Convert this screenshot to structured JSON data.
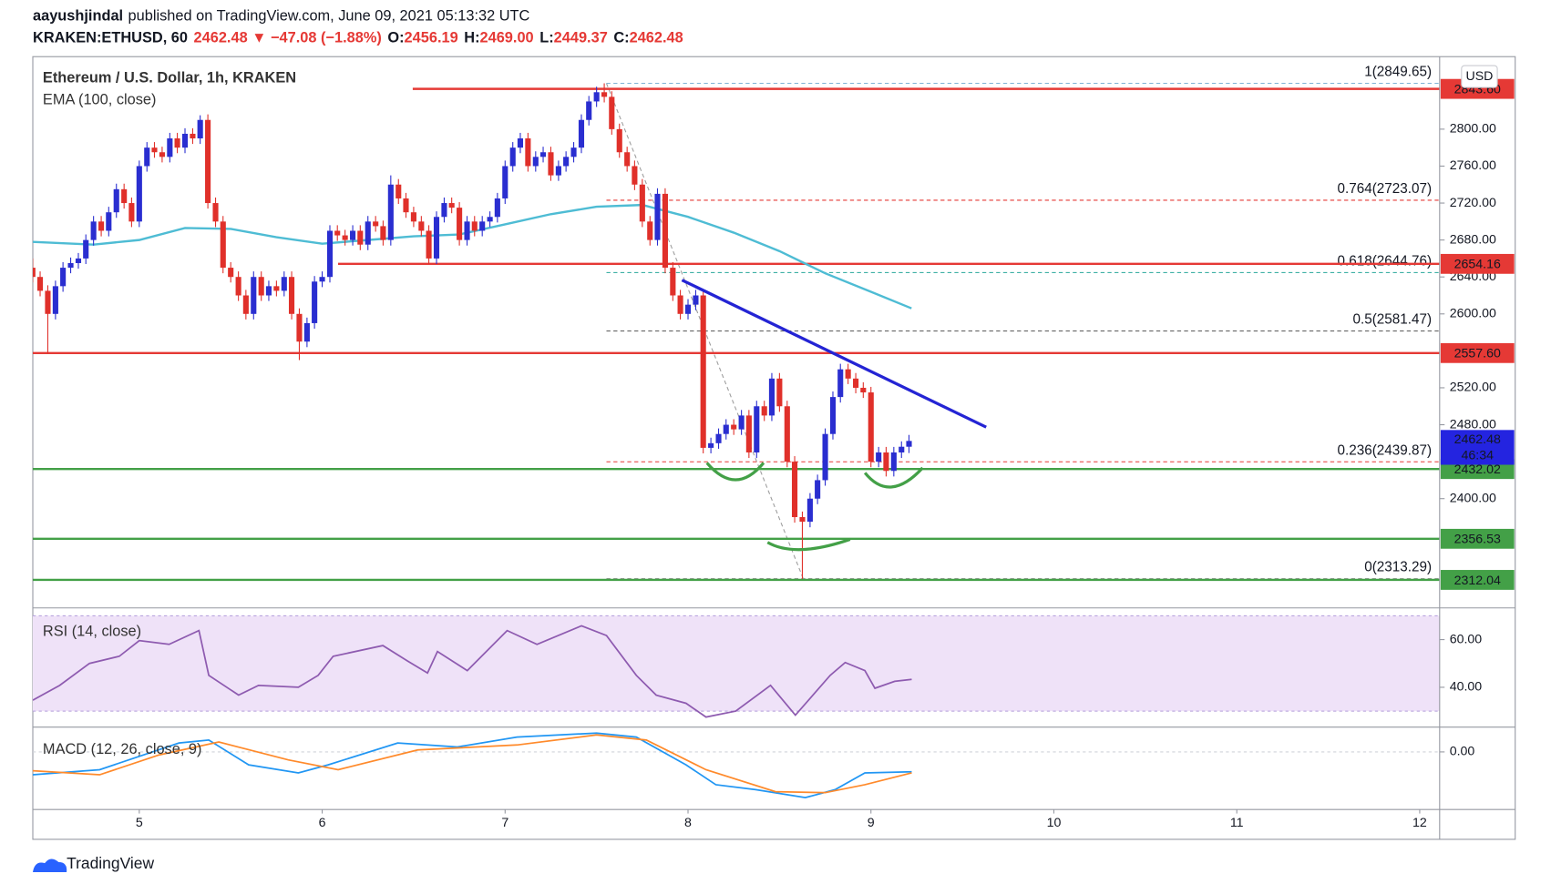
{
  "header": {
    "author": "aayushjindal",
    "published": "published on TradingView.com, June 09, 2021 05:13:32 UTC",
    "symbol": "KRAKEN:ETHUSD, 60",
    "change": "2462.48 ▼ −47.08 (−1.88%)",
    "ohlc_labels": [
      {
        "label": "O:",
        "value": "2456.19"
      },
      {
        "label": "H:",
        "value": "2469.00"
      },
      {
        "label": "L:",
        "value": "2449.37"
      },
      {
        "label": "C:",
        "value": "2462.48"
      }
    ]
  },
  "footer": {
    "brand": "TradingView"
  },
  "chart_data": [
    {
      "type": "candlestick",
      "title": "Ethereum / U.S. Dollar, 1h, KRAKEN",
      "currency": "USD",
      "up_color": "#2a2ed0",
      "down_color": "#e0302a",
      "xlim": [
        4.418,
        12.109
      ],
      "xticks": [
        5,
        6,
        7,
        8,
        9,
        10,
        11,
        12
      ],
      "ylim": [
        2281.7,
        2878.5
      ],
      "yticks": [
        {
          "value": 2800,
          "label": "2800.00"
        },
        {
          "value": 2760,
          "label": "2760.00"
        },
        {
          "value": 2720,
          "label": "2720.00"
        },
        {
          "value": 2680,
          "label": "2680.00"
        },
        {
          "value": 2640,
          "label": "2640.00"
        },
        {
          "value": 2600,
          "label": "2600.00"
        },
        {
          "value": 2520,
          "label": "2520.00"
        },
        {
          "value": 2480,
          "label": "2480.00"
        },
        {
          "value": 2400,
          "label": "2400.00"
        }
      ],
      "x": [
        4.417,
        4.458,
        4.5,
        4.542,
        4.583,
        4.625,
        4.667,
        4.708,
        4.75,
        4.792,
        4.833,
        4.875,
        4.917,
        4.958,
        5,
        5.042,
        5.083,
        5.125,
        5.167,
        5.208,
        5.25,
        5.292,
        5.333,
        5.375,
        5.417,
        5.458,
        5.5,
        5.542,
        5.583,
        5.625,
        5.667,
        5.708,
        5.75,
        5.792,
        5.833,
        5.875,
        5.917,
        5.958,
        6,
        6.042,
        6.083,
        6.125,
        6.167,
        6.208,
        6.25,
        6.292,
        6.333,
        6.375,
        6.417,
        6.458,
        6.5,
        6.542,
        6.583,
        6.625,
        6.667,
        6.708,
        6.75,
        6.792,
        6.833,
        6.875,
        6.917,
        6.958,
        7,
        7.042,
        7.083,
        7.125,
        7.167,
        7.208,
        7.25,
        7.292,
        7.333,
        7.375,
        7.417,
        7.458,
        7.5,
        7.542,
        7.583,
        7.625,
        7.667,
        7.708,
        7.75,
        7.792,
        7.833,
        7.875,
        7.917,
        7.958,
        8,
        8.042,
        8.083,
        8.125,
        8.167,
        8.208,
        8.25,
        8.292,
        8.333,
        8.375,
        8.417,
        8.458,
        8.5,
        8.542,
        8.583,
        8.625,
        8.667,
        8.708,
        8.75,
        8.792,
        8.833,
        8.875,
        8.917,
        8.958,
        9,
        9.042,
        9.083,
        9.125,
        9.167,
        9.208
      ],
      "ohlc": [
        [
          2650,
          2660,
          2634,
          2640
        ],
        [
          2640,
          2646,
          2619,
          2625
        ],
        [
          2625,
          2631,
          2557,
          2600
        ],
        [
          2600,
          2636,
          2594,
          2630
        ],
        [
          2630,
          2656,
          2624,
          2650
        ],
        [
          2650,
          2661,
          2644,
          2655
        ],
        [
          2655,
          2666,
          2649,
          2660
        ],
        [
          2660,
          2686,
          2654,
          2680
        ],
        [
          2680,
          2706,
          2674,
          2700
        ],
        [
          2700,
          2706,
          2684,
          2690
        ],
        [
          2690,
          2716,
          2684,
          2710
        ],
        [
          2710,
          2741,
          2704,
          2735
        ],
        [
          2735,
          2741,
          2714,
          2720
        ],
        [
          2720,
          2726,
          2694,
          2700
        ],
        [
          2700,
          2766,
          2694,
          2760
        ],
        [
          2760,
          2786,
          2754,
          2780
        ],
        [
          2780,
          2786,
          2769,
          2775
        ],
        [
          2775,
          2781,
          2764,
          2770
        ],
        [
          2770,
          2796,
          2764,
          2790
        ],
        [
          2790,
          2796,
          2774,
          2780
        ],
        [
          2780,
          2801,
          2774,
          2795
        ],
        [
          2795,
          2801,
          2784,
          2790
        ],
        [
          2790,
          2815,
          2784,
          2810
        ],
        [
          2810,
          2816,
          2714,
          2720
        ],
        [
          2720,
          2726,
          2694,
          2700
        ],
        [
          2700,
          2706,
          2644,
          2650
        ],
        [
          2650,
          2656,
          2634,
          2640
        ],
        [
          2640,
          2646,
          2614,
          2620
        ],
        [
          2620,
          2626,
          2594,
          2600
        ],
        [
          2600,
          2646,
          2594,
          2640
        ],
        [
          2640,
          2646,
          2614,
          2620
        ],
        [
          2620,
          2636,
          2614,
          2630
        ],
        [
          2630,
          2636,
          2619,
          2625
        ],
        [
          2625,
          2646,
          2619,
          2640
        ],
        [
          2640,
          2646,
          2594,
          2600
        ],
        [
          2600,
          2606,
          2550,
          2570
        ],
        [
          2570,
          2596,
          2564,
          2590
        ],
        [
          2590,
          2641,
          2584,
          2635
        ],
        [
          2635,
          2646,
          2629,
          2640
        ],
        [
          2640,
          2696,
          2634,
          2690
        ],
        [
          2690,
          2696,
          2679,
          2685
        ],
        [
          2685,
          2691,
          2674,
          2680
        ],
        [
          2680,
          2696,
          2674,
          2690
        ],
        [
          2690,
          2696,
          2669,
          2675
        ],
        [
          2675,
          2706,
          2669,
          2700
        ],
        [
          2700,
          2706,
          2689,
          2695
        ],
        [
          2695,
          2701,
          2674,
          2680
        ],
        [
          2680,
          2750,
          2674,
          2740
        ],
        [
          2740,
          2746,
          2719,
          2725
        ],
        [
          2725,
          2731,
          2704,
          2710
        ],
        [
          2710,
          2716,
          2694,
          2700
        ],
        [
          2700,
          2706,
          2684,
          2690
        ],
        [
          2690,
          2696,
          2654,
          2660
        ],
        [
          2660,
          2711,
          2654,
          2705
        ],
        [
          2705,
          2726,
          2699,
          2720
        ],
        [
          2720,
          2726,
          2709,
          2715
        ],
        [
          2715,
          2721,
          2674,
          2680
        ],
        [
          2680,
          2706,
          2674,
          2700
        ],
        [
          2700,
          2706,
          2684,
          2690
        ],
        [
          2690,
          2706,
          2684,
          2700
        ],
        [
          2700,
          2711,
          2694,
          2705
        ],
        [
          2705,
          2731,
          2699,
          2725
        ],
        [
          2725,
          2766,
          2719,
          2760
        ],
        [
          2760,
          2786,
          2754,
          2780
        ],
        [
          2780,
          2796,
          2774,
          2790
        ],
        [
          2790,
          2796,
          2754,
          2760
        ],
        [
          2760,
          2776,
          2754,
          2770
        ],
        [
          2770,
          2781,
          2764,
          2775
        ],
        [
          2775,
          2781,
          2744,
          2750
        ],
        [
          2750,
          2766,
          2744,
          2760
        ],
        [
          2760,
          2776,
          2754,
          2770
        ],
        [
          2770,
          2786,
          2764,
          2780
        ],
        [
          2780,
          2816,
          2774,
          2810
        ],
        [
          2810,
          2836,
          2804,
          2830
        ],
        [
          2830,
          2846,
          2824,
          2840
        ],
        [
          2840,
          2849.65,
          2829,
          2835
        ],
        [
          2835,
          2841,
          2794,
          2800
        ],
        [
          2800,
          2806,
          2769,
          2775
        ],
        [
          2775,
          2781,
          2754,
          2760
        ],
        [
          2760,
          2766,
          2734,
          2740
        ],
        [
          2740,
          2746,
          2694,
          2700
        ],
        [
          2700,
          2706,
          2674,
          2680
        ],
        [
          2680,
          2736,
          2674,
          2730
        ],
        [
          2730,
          2736,
          2644,
          2650
        ],
        [
          2650,
          2656,
          2614,
          2620
        ],
        [
          2620,
          2626,
          2594,
          2600
        ],
        [
          2600,
          2616,
          2594,
          2610
        ],
        [
          2610,
          2626,
          2604,
          2620
        ],
        [
          2620,
          2626,
          2449,
          2455
        ],
        [
          2455,
          2466,
          2449,
          2460
        ],
        [
          2460,
          2476,
          2454,
          2470
        ],
        [
          2470,
          2486,
          2464,
          2480
        ],
        [
          2480,
          2486,
          2469,
          2475
        ],
        [
          2475,
          2496,
          2469,
          2490
        ],
        [
          2490,
          2496,
          2444,
          2450
        ],
        [
          2450,
          2506,
          2444,
          2500
        ],
        [
          2500,
          2506,
          2484,
          2490
        ],
        [
          2490,
          2536,
          2484,
          2530
        ],
        [
          2530,
          2536,
          2494,
          2500
        ],
        [
          2500,
          2506,
          2434,
          2440
        ],
        [
          2440,
          2446,
          2374,
          2380
        ],
        [
          2380,
          2386,
          2313.29,
          2375
        ],
        [
          2375,
          2406,
          2369,
          2400
        ],
        [
          2400,
          2426,
          2394,
          2420
        ],
        [
          2420,
          2476,
          2414,
          2470
        ],
        [
          2470,
          2516,
          2464,
          2510
        ],
        [
          2510,
          2546,
          2504,
          2540
        ],
        [
          2540,
          2546,
          2524,
          2530
        ],
        [
          2530,
          2536,
          2514,
          2520
        ],
        [
          2520,
          2526,
          2509,
          2515
        ],
        [
          2515,
          2521,
          2434,
          2440
        ],
        [
          2440,
          2456,
          2434,
          2450
        ],
        [
          2450,
          2456,
          2424,
          2430
        ],
        [
          2430,
          2456,
          2424,
          2450
        ],
        [
          2450,
          2462,
          2444,
          2456.19
        ],
        [
          2456.19,
          2469,
          2449.37,
          2462.48
        ]
      ],
      "overlays": [
        {
          "name": "EMA (100, close)",
          "color": "#4ebcd4",
          "x": [
            4.418,
            4.75,
            5,
            5.25,
            5.5,
            5.75,
            6,
            6.25,
            6.5,
            6.75,
            7,
            7.25,
            7.5,
            7.75,
            8,
            8.25,
            8.5,
            8.75,
            9,
            9.222
          ],
          "values": [
            2678,
            2675,
            2680,
            2693,
            2692,
            2683,
            2676,
            2680,
            2684,
            2686,
            2697,
            2708,
            2716,
            2718,
            2705,
            2688,
            2668,
            2644,
            2624,
            2606
          ]
        }
      ],
      "levels": [
        {
          "value": 2843.6,
          "label": "2843.60",
          "color": "#e53935",
          "x0": 6.495
        },
        {
          "value": 2654.16,
          "label": "2654.16",
          "color": "#e53935",
          "x0": 6.087
        },
        {
          "value": 2557.6,
          "label": "2557.60",
          "color": "#e53935",
          "x0": 4.418
        },
        {
          "value": 2432.02,
          "label": "2432.02",
          "color": "#43a047",
          "x0": 4.418
        },
        {
          "value": 2356.53,
          "label": "2356.53",
          "color": "#43a047",
          "x0": 4.418
        },
        {
          "value": 2312.04,
          "label": "2312.04",
          "color": "#43a047",
          "x0": 4.418
        }
      ],
      "fib": {
        "x": [
          7.554,
          8.63
        ],
        "levels": [
          {
            "value": 2849.65,
            "label": "1(2849.65)",
            "color": "#7fb3d5"
          },
          {
            "value": 2723.07,
            "label": "0.764(2723.07)",
            "color": "#e53935"
          },
          {
            "value": 2644.76,
            "label": "0.618(2644.76)",
            "color": "#26a69a"
          },
          {
            "value": 2581.47,
            "label": "0.5(2581.47)",
            "color": "#666666"
          },
          {
            "value": 2439.87,
            "label": "0.236(2439.87)",
            "color": "#e53935"
          },
          {
            "value": 2313.29,
            "label": "0(2313.29)",
            "color": "#888888"
          }
        ]
      },
      "trendline": {
        "x": [
          7.967,
          9.63
        ],
        "values": [
          2636.6,
          2477.4
        ],
        "color": "#2424d4"
      },
      "last_price": {
        "value": 2462.48,
        "countdown": "46:34",
        "color": "#2424e0"
      }
    },
    {
      "type": "line",
      "title": "RSI (14, close)",
      "color": "#8e5bb0",
      "band": [
        30,
        70
      ],
      "band_color": "#efe2f8",
      "xlim": [
        4.418,
        12.109
      ],
      "ylim": [
        23.3,
        73.3
      ],
      "yticks": [
        {
          "value": 60,
          "label": "60.00"
        },
        {
          "value": 40,
          "label": "40.00"
        }
      ],
      "x": [
        4.418,
        4.565,
        4.728,
        4.891,
        5,
        5.163,
        5.326,
        5.38,
        5.543,
        5.652,
        5.87,
        5.978,
        6.06,
        6.332,
        6.467,
        6.576,
        6.63,
        6.793,
        7.011,
        7.174,
        7.418,
        7.554,
        7.717,
        7.826,
        7.989,
        8.098,
        8.261,
        8.451,
        8.587,
        8.777,
        8.859,
        8.967,
        9.022,
        9.13,
        9.223
      ],
      "values": [
        34.6,
        40.8,
        50,
        53,
        59.6,
        58,
        63.8,
        45,
        36.7,
        40.8,
        40,
        45,
        53,
        57.5,
        51,
        46,
        55,
        47,
        63.8,
        58,
        65.8,
        61.7,
        45,
        36.7,
        33.3,
        27.5,
        30,
        40.8,
        28.3,
        45,
        50.4,
        47,
        39.6,
        42.5,
        43.3
      ]
    },
    {
      "type": "line",
      "title": "MACD (12, 26, close, 9)",
      "xlim": [
        4.418,
        12.109
      ],
      "ylim": [
        -44.6,
        19.2
      ],
      "yticks": [
        {
          "value": 0,
          "label": "0.00"
        }
      ],
      "series": [
        {
          "color": "#2196f3",
          "x": [
            4.418,
            4.783,
            5.217,
            5.38,
            5.598,
            5.87,
            6.033,
            6.413,
            6.739,
            7.065,
            7.5,
            7.717,
            7.989,
            8.152,
            8.37,
            8.641,
            8.804,
            8.967,
            9.223
          ],
          "values": [
            -17.7,
            -13.8,
            6.9,
            9.2,
            -10,
            -16.2,
            -10,
            6.9,
            3.8,
            11.5,
            14.6,
            11.5,
            -10,
            -25.4,
            -29.2,
            -35.4,
            -29.2,
            -16.2,
            -15.4
          ]
        },
        {
          "color": "#ff8a2b",
          "x": [
            4.418,
            4.783,
            5.109,
            5.435,
            5.815,
            6.087,
            6.522,
            7.065,
            7.5,
            7.772,
            8.098,
            8.478,
            8.75,
            8.967,
            9.223
          ],
          "values": [
            -14.6,
            -17.7,
            -2.3,
            7.7,
            -6.2,
            -13.8,
            1.5,
            5.4,
            13.1,
            9.2,
            -13.8,
            -30.8,
            -31.5,
            -25.4,
            -16.2
          ]
        }
      ]
    }
  ]
}
